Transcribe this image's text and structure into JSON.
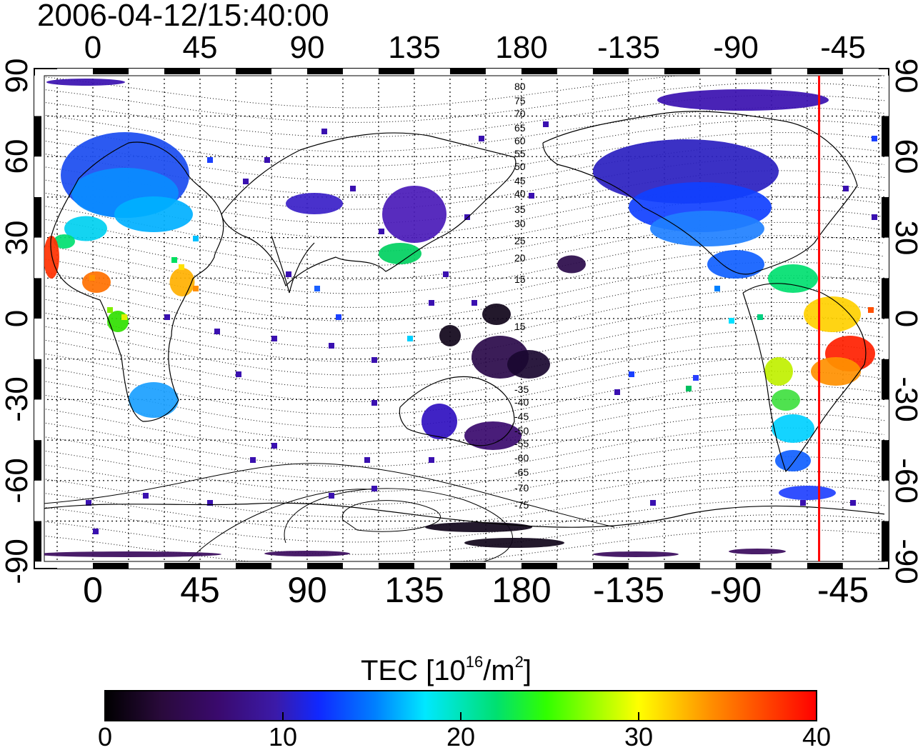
{
  "title": "2006-04-12/15:40:00",
  "map": {
    "top_lon_labels": [
      "0",
      "45",
      "90",
      "135",
      "180",
      "-135",
      "-90",
      "-45"
    ],
    "bottom_lon_labels": [
      "0",
      "45",
      "90",
      "135",
      "180",
      "-135",
      "-90",
      "-45"
    ],
    "left_lat_labels": [
      "90",
      "60",
      "30",
      "0",
      "-30",
      "-60",
      "-90"
    ],
    "right_lat_labels": [
      "90",
      "60",
      "30",
      "0",
      "-30",
      "-60",
      "-90"
    ],
    "contour_labels": [
      "80",
      "75",
      "70",
      "65",
      "60",
      "55",
      "50",
      "45",
      "40",
      "35",
      "30",
      "25",
      "20",
      "15",
      "15",
      "-35",
      "-40",
      "-45",
      "-50",
      "-55",
      "-60",
      "-65",
      "-70",
      "-75"
    ],
    "marker_line_color": "#ff0000",
    "marker_line_lon": -55
  },
  "colorbar": {
    "title_main": "TEC  [10",
    "title_exp": "16",
    "title_unit": "/m",
    "title_exp2": "2",
    "title_close": "]",
    "ticks": [
      "0",
      "10",
      "20",
      "30",
      "40"
    ],
    "range": [
      0,
      40
    ],
    "colors": [
      "#000000",
      "#3a0a5c",
      "#3b1a9e",
      "#0a24ff",
      "#0090ff",
      "#00f0ff",
      "#00e070",
      "#20ff00",
      "#ffff00",
      "#ff9000",
      "#ff0000"
    ]
  }
}
